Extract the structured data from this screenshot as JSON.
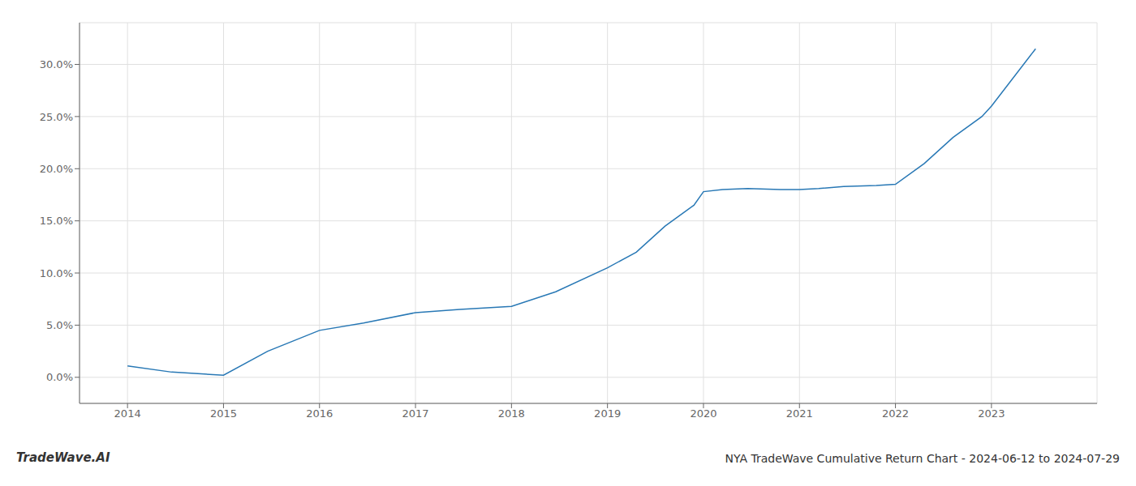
{
  "chart_data": {
    "type": "line",
    "title": "NYA TradeWave Cumulative Return Chart - 2024-06-12 to 2024-07-29",
    "annotations": [
      "TradeWave.AI"
    ],
    "x": [
      2014,
      2014.46,
      2015,
      2015.46,
      2016,
      2016.46,
      2017,
      2017.46,
      2018,
      2018.46,
      2019,
      2019.3,
      2019.6,
      2019.9,
      2020,
      2020.2,
      2020.46,
      2020.8,
      2021,
      2021.2,
      2021.46,
      2021.8,
      2022,
      2022.3,
      2022.6,
      2022.9,
      2023,
      2023.46
    ],
    "values": [
      1.1,
      0.5,
      0.2,
      2.5,
      4.5,
      5.2,
      6.2,
      6.5,
      6.8,
      8.2,
      10.5,
      12.0,
      14.5,
      16.5,
      17.8,
      18.0,
      18.1,
      18.0,
      18.0,
      18.1,
      18.3,
      18.4,
      18.5,
      20.5,
      23.0,
      25.0,
      26.0,
      31.5
    ],
    "color": "#2878b5",
    "xlim": [
      2013.5,
      2024.1
    ],
    "ylim": [
      -2.5,
      34.0
    ],
    "xticks": [
      2014,
      2015,
      2016,
      2017,
      2018,
      2019,
      2020,
      2021,
      2022,
      2023
    ],
    "yticks": [
      {
        "value": 0.0,
        "label": "0.0%"
      },
      {
        "value": 5.0,
        "label": "5.0%"
      },
      {
        "value": 10.0,
        "label": "10.0%"
      },
      {
        "value": 15.0,
        "label": "15.0%"
      },
      {
        "value": 20.0,
        "label": "20.0%"
      },
      {
        "value": 25.0,
        "label": "25.0%"
      },
      {
        "value": 30.0,
        "label": "30.0%"
      }
    ],
    "grid": true
  }
}
